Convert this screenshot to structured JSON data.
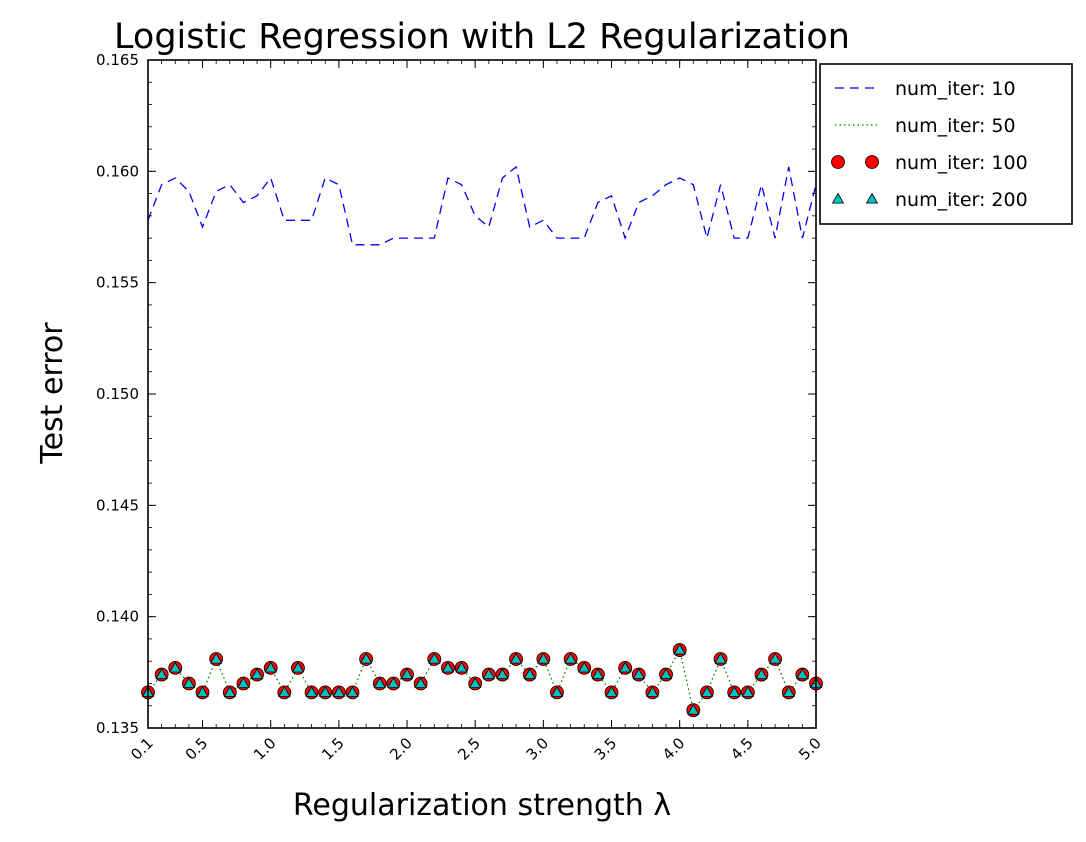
{
  "chart_data": {
    "type": "line",
    "title": "Logistic Regression with L2 Regularization",
    "xlabel": "Regularization strength λ",
    "ylabel": "Test error",
    "xlim": [
      0.1,
      5.0
    ],
    "ylim": [
      0.135,
      0.165
    ],
    "xticks": [
      "0.1",
      "0.5",
      "1.0",
      "1.5",
      "2.0",
      "2.5",
      "3.0",
      "3.5",
      "4.0",
      "4.5",
      "5.0"
    ],
    "yticks": [
      "0.135",
      "0.140",
      "0.145",
      "0.150",
      "0.155",
      "0.160",
      "0.165"
    ],
    "grid": false,
    "legend_position": "outside-top-right",
    "x": [
      0.1,
      0.2,
      0.3,
      0.4,
      0.5,
      0.6,
      0.7,
      0.8,
      0.9,
      1.0,
      1.1,
      1.2,
      1.3,
      1.4,
      1.5,
      1.6,
      1.7,
      1.8,
      1.9,
      2.0,
      2.1,
      2.2,
      2.3,
      2.4,
      2.5,
      2.6,
      2.7,
      2.8,
      2.9,
      3.0,
      3.1,
      3.2,
      3.3,
      3.4,
      3.5,
      3.6,
      3.7,
      3.8,
      3.9,
      4.0,
      4.1,
      4.2,
      4.3,
      4.4,
      4.5,
      4.6,
      4.7,
      4.8,
      4.9,
      5.0
    ],
    "series": [
      {
        "name": "num_iter: 10",
        "style": "dashed",
        "color": "#0000ff",
        "values": [
          0.1578,
          0.1594,
          0.1597,
          0.1591,
          0.1575,
          0.1591,
          0.1594,
          0.1586,
          0.1589,
          0.1597,
          0.1578,
          0.1578,
          0.1578,
          0.1597,
          0.1594,
          0.1567,
          0.1567,
          0.1567,
          0.157,
          0.157,
          0.157,
          0.157,
          0.1597,
          0.1594,
          0.158,
          0.1575,
          0.1597,
          0.1602,
          0.1575,
          0.1578,
          0.157,
          0.157,
          0.157,
          0.1586,
          0.1589,
          0.157,
          0.1586,
          0.1589,
          0.1594,
          0.1597,
          0.1594,
          0.157,
          0.1594,
          0.157,
          0.157,
          0.1594,
          0.157,
          0.1602,
          0.157,
          0.1594
        ]
      },
      {
        "name": "num_iter: 50",
        "style": "dotted",
        "color": "#008000",
        "values": [
          0.1366,
          0.1374,
          0.1377,
          0.137,
          0.1366,
          0.1381,
          0.1366,
          0.137,
          0.1374,
          0.1377,
          0.1366,
          0.1377,
          0.1366,
          0.1366,
          0.1366,
          0.1366,
          0.1381,
          0.137,
          0.137,
          0.1374,
          0.137,
          0.1381,
          0.1377,
          0.1377,
          0.137,
          0.1374,
          0.1374,
          0.1381,
          0.1374,
          0.1381,
          0.1366,
          0.1381,
          0.1377,
          0.1374,
          0.1366,
          0.1377,
          0.1374,
          0.1366,
          0.1374,
          0.1385,
          0.1358,
          0.1366,
          0.1381,
          0.1366,
          0.1366,
          0.1374,
          0.1381,
          0.1366,
          0.1374,
          0.137
        ]
      },
      {
        "name": "num_iter: 100",
        "style": "circle-markers",
        "color": "#ff0000",
        "values": [
          0.1366,
          0.1374,
          0.1377,
          0.137,
          0.1366,
          0.1381,
          0.1366,
          0.137,
          0.1374,
          0.1377,
          0.1366,
          0.1377,
          0.1366,
          0.1366,
          0.1366,
          0.1366,
          0.1381,
          0.137,
          0.137,
          0.1374,
          0.137,
          0.1381,
          0.1377,
          0.1377,
          0.137,
          0.1374,
          0.1374,
          0.1381,
          0.1374,
          0.1381,
          0.1366,
          0.1381,
          0.1377,
          0.1374,
          0.1366,
          0.1377,
          0.1374,
          0.1366,
          0.1374,
          0.1385,
          0.1358,
          0.1366,
          0.1381,
          0.1366,
          0.1366,
          0.1374,
          0.1381,
          0.1366,
          0.1374,
          0.137
        ]
      },
      {
        "name": "num_iter: 200",
        "style": "triangle-markers",
        "color": "#00bfbf",
        "values": [
          0.1366,
          0.1374,
          0.1377,
          0.137,
          0.1366,
          0.1381,
          0.1366,
          0.137,
          0.1374,
          0.1377,
          0.1366,
          0.1377,
          0.1366,
          0.1366,
          0.1366,
          0.1366,
          0.1381,
          0.137,
          0.137,
          0.1374,
          0.137,
          0.1381,
          0.1377,
          0.1377,
          0.137,
          0.1374,
          0.1374,
          0.1381,
          0.1374,
          0.1381,
          0.1366,
          0.1381,
          0.1377,
          0.1374,
          0.1366,
          0.1377,
          0.1374,
          0.1366,
          0.1374,
          0.1385,
          0.1358,
          0.1366,
          0.1381,
          0.1366,
          0.1366,
          0.1374,
          0.1381,
          0.1366,
          0.1374,
          0.137
        ]
      }
    ]
  }
}
